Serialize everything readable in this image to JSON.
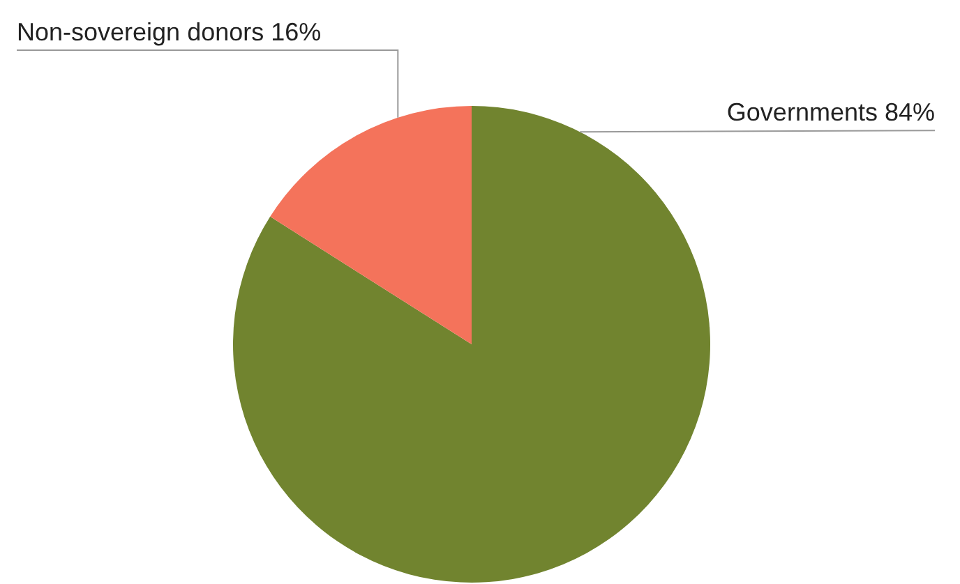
{
  "chart_data": {
    "type": "pie",
    "categories": [
      "Governments",
      "Non-sovereign donors"
    ],
    "values": [
      84,
      16
    ],
    "value_labels": [
      "84%",
      "16%"
    ],
    "colors": [
      "#71842f",
      "#f4735b"
    ]
  }
}
